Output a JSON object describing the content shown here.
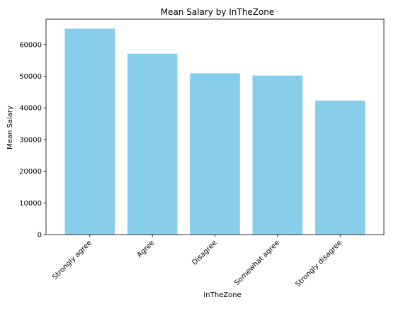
{
  "chart_data": {
    "type": "bar",
    "title": "Mean Salary by InTheZone",
    "xlabel": "InTheZone",
    "ylabel": "Mean Salary",
    "categories": [
      "Strongly agree",
      "Agree",
      "Disagree",
      "Somewhat agree",
      "Strongly disagree"
    ],
    "values": [
      65000,
      57100,
      50900,
      50200,
      42300
    ],
    "ylim": [
      0,
      68000
    ],
    "yticks": [
      0,
      10000,
      20000,
      30000,
      40000,
      50000,
      60000
    ],
    "bar_color": "#87CEEB",
    "grid": false,
    "legend": "none"
  }
}
